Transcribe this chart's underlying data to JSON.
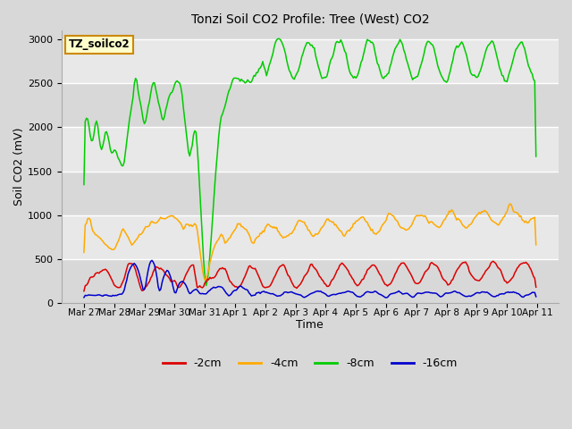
{
  "title": "Tonzi Soil CO2 Profile: Tree (West) CO2",
  "xlabel": "Time",
  "ylabel": "Soil CO2 (mV)",
  "ylim": [
    0,
    3100
  ],
  "yticks": [
    0,
    500,
    1000,
    1500,
    2000,
    2500,
    3000
  ],
  "label_box_text": "TZ_soilco2",
  "label_box_facecolor": "#ffffcc",
  "label_box_edgecolor": "#cc8800",
  "colors": {
    "-2cm": "#dd0000",
    "-4cm": "#ffaa00",
    "-8cm": "#00cc00",
    "-16cm": "#0000cc"
  },
  "band_colors": [
    "#d8d8d8",
    "#e8e8e8"
  ],
  "fig_bg": "#e0e0e0",
  "n_points": 360
}
